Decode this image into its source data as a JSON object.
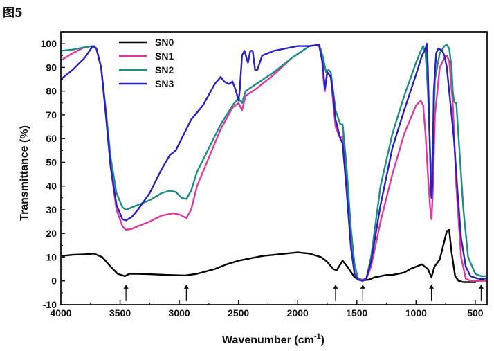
{
  "figure_label": "图5",
  "chart_data": {
    "type": "line",
    "title": "",
    "xlabel": "Wavenumber (cm",
    "xlabel_sup": "-1",
    "xlabel_close": ")",
    "ylabel": "Transmittance (%)",
    "xlim": [
      4000,
      400
    ],
    "ylim": [
      -10,
      105
    ],
    "x_ticks": [
      4000,
      3500,
      3000,
      2500,
      2000,
      1500,
      1000,
      500
    ],
    "y_ticks": [
      -10,
      0,
      10,
      20,
      30,
      40,
      50,
      60,
      70,
      80,
      90,
      100
    ],
    "grid": false,
    "legend_position": "top-left",
    "arrow_wavenumbers": [
      3450,
      2940,
      1680,
      1450,
      870,
      450
    ],
    "series": [
      {
        "name": "SN0",
        "color": "#000000",
        "points": [
          [
            4000,
            10.5
          ],
          [
            3900,
            11
          ],
          [
            3800,
            11.2
          ],
          [
            3720,
            11.5
          ],
          [
            3650,
            10
          ],
          [
            3580,
            6
          ],
          [
            3520,
            3
          ],
          [
            3460,
            2
          ],
          [
            3420,
            3
          ],
          [
            3350,
            3
          ],
          [
            3250,
            2.8
          ],
          [
            3100,
            2.5
          ],
          [
            2950,
            2.3
          ],
          [
            2850,
            3
          ],
          [
            2700,
            5
          ],
          [
            2600,
            7
          ],
          [
            2500,
            8.5
          ],
          [
            2400,
            9.5
          ],
          [
            2300,
            10.5
          ],
          [
            2200,
            11
          ],
          [
            2100,
            11.5
          ],
          [
            2000,
            12
          ],
          [
            1900,
            11.5
          ],
          [
            1800,
            10
          ],
          [
            1750,
            8
          ],
          [
            1700,
            5
          ],
          [
            1670,
            4.5
          ],
          [
            1620,
            8.5
          ],
          [
            1580,
            6
          ],
          [
            1520,
            1.5
          ],
          [
            1480,
            0.5
          ],
          [
            1450,
            0.3
          ],
          [
            1400,
            0.5
          ],
          [
            1350,
            1.5
          ],
          [
            1300,
            2
          ],
          [
            1250,
            2.5
          ],
          [
            1200,
            2.5
          ],
          [
            1100,
            3.5
          ],
          [
            1050,
            5
          ],
          [
            1000,
            6
          ],
          [
            950,
            7
          ],
          [
            900,
            5
          ],
          [
            870,
            1.5
          ],
          [
            845,
            6
          ],
          [
            800,
            9
          ],
          [
            770,
            15
          ],
          [
            740,
            21
          ],
          [
            720,
            21.5
          ],
          [
            700,
            12
          ],
          [
            670,
            2
          ],
          [
            640,
            0
          ],
          [
            600,
            -0.5
          ],
          [
            500,
            -0.5
          ],
          [
            450,
            0.5
          ],
          [
            420,
            1
          ]
        ]
      },
      {
        "name": "SN1",
        "color": "#e0399e",
        "points": [
          [
            4000,
            93
          ],
          [
            3900,
            96
          ],
          [
            3800,
            98.5
          ],
          [
            3730,
            99
          ],
          [
            3700,
            98
          ],
          [
            3660,
            90
          ],
          [
            3620,
            70
          ],
          [
            3580,
            48
          ],
          [
            3530,
            30
          ],
          [
            3480,
            23
          ],
          [
            3450,
            21.5
          ],
          [
            3400,
            22
          ],
          [
            3350,
            23
          ],
          [
            3250,
            25
          ],
          [
            3150,
            27.5
          ],
          [
            3050,
            28.5
          ],
          [
            3000,
            28
          ],
          [
            2940,
            26.5
          ],
          [
            2900,
            30
          ],
          [
            2850,
            40
          ],
          [
            2750,
            52
          ],
          [
            2650,
            64
          ],
          [
            2550,
            73
          ],
          [
            2500,
            75
          ],
          [
            2470,
            72
          ],
          [
            2440,
            78
          ],
          [
            2350,
            81
          ],
          [
            2200,
            87
          ],
          [
            2050,
            94
          ],
          [
            1900,
            99
          ],
          [
            1820,
            99.5
          ],
          [
            1800,
            97
          ],
          [
            1780,
            84
          ],
          [
            1770,
            80
          ],
          [
            1750,
            88
          ],
          [
            1720,
            86
          ],
          [
            1700,
            75
          ],
          [
            1680,
            65
          ],
          [
            1640,
            60
          ],
          [
            1620,
            61
          ],
          [
            1590,
            45
          ],
          [
            1550,
            20
          ],
          [
            1520,
            6
          ],
          [
            1490,
            1
          ],
          [
            1450,
            0.5
          ],
          [
            1420,
            1
          ],
          [
            1380,
            6
          ],
          [
            1300,
            25
          ],
          [
            1200,
            45
          ],
          [
            1100,
            62
          ],
          [
            1000,
            74
          ],
          [
            960,
            76
          ],
          [
            940,
            74
          ],
          [
            920,
            62
          ],
          [
            900,
            45
          ],
          [
            880,
            30
          ],
          [
            870,
            26
          ],
          [
            860,
            35
          ],
          [
            840,
            70
          ],
          [
            800,
            90
          ],
          [
            760,
            94
          ],
          [
            740,
            95
          ],
          [
            720,
            93
          ],
          [
            690,
            75
          ],
          [
            660,
            40
          ],
          [
            620,
            10
          ],
          [
            580,
            1
          ],
          [
            540,
            0
          ],
          [
            450,
            0
          ],
          [
            400,
            0
          ]
        ]
      },
      {
        "name": "SN2",
        "color": "#1e8c87",
        "points": [
          [
            4000,
            97
          ],
          [
            3900,
            97.5
          ],
          [
            3800,
            98.5
          ],
          [
            3720,
            99
          ],
          [
            3700,
            98
          ],
          [
            3660,
            90
          ],
          [
            3620,
            72
          ],
          [
            3580,
            52
          ],
          [
            3530,
            37
          ],
          [
            3480,
            31
          ],
          [
            3450,
            30
          ],
          [
            3400,
            31
          ],
          [
            3350,
            32
          ],
          [
            3250,
            34
          ],
          [
            3150,
            37
          ],
          [
            3080,
            38
          ],
          [
            3030,
            37.5
          ],
          [
            2980,
            35
          ],
          [
            2940,
            34.5
          ],
          [
            2900,
            38
          ],
          [
            2850,
            46
          ],
          [
            2750,
            56
          ],
          [
            2650,
            66
          ],
          [
            2550,
            74
          ],
          [
            2500,
            77
          ],
          [
            2470,
            75
          ],
          [
            2440,
            80
          ],
          [
            2350,
            83
          ],
          [
            2200,
            88
          ],
          [
            2050,
            94
          ],
          [
            1900,
            99
          ],
          [
            1820,
            99.5
          ],
          [
            1790,
            95
          ],
          [
            1760,
            88
          ],
          [
            1740,
            89
          ],
          [
            1720,
            88
          ],
          [
            1700,
            80
          ],
          [
            1680,
            72
          ],
          [
            1640,
            66
          ],
          [
            1620,
            66
          ],
          [
            1590,
            50
          ],
          [
            1550,
            22
          ],
          [
            1520,
            7
          ],
          [
            1490,
            1
          ],
          [
            1450,
            0
          ],
          [
            1420,
            1
          ],
          [
            1380,
            10
          ],
          [
            1300,
            40
          ],
          [
            1200,
            62
          ],
          [
            1100,
            78
          ],
          [
            1000,
            92
          ],
          [
            960,
            97
          ],
          [
            940,
            99
          ],
          [
            920,
            96
          ],
          [
            900,
            80
          ],
          [
            880,
            52
          ],
          [
            870,
            40
          ],
          [
            860,
            55
          ],
          [
            840,
            85
          ],
          [
            800,
            96
          ],
          [
            760,
            99
          ],
          [
            740,
            99.5
          ],
          [
            720,
            98
          ],
          [
            700,
            90
          ],
          [
            690,
            80
          ],
          [
            680,
            76
          ],
          [
            670,
            75
          ],
          [
            660,
            75
          ],
          [
            640,
            60
          ],
          [
            600,
            30
          ],
          [
            560,
            10
          ],
          [
            500,
            3
          ],
          [
            450,
            2
          ],
          [
            400,
            2
          ]
        ]
      },
      {
        "name": "SN3",
        "color": "#2a1fc0",
        "points": [
          [
            4000,
            85
          ],
          [
            3900,
            89
          ],
          [
            3800,
            94
          ],
          [
            3730,
            99
          ],
          [
            3700,
            98
          ],
          [
            3660,
            90
          ],
          [
            3620,
            70
          ],
          [
            3580,
            48
          ],
          [
            3530,
            32
          ],
          [
            3480,
            26
          ],
          [
            3450,
            25.5
          ],
          [
            3400,
            27
          ],
          [
            3350,
            30
          ],
          [
            3250,
            37
          ],
          [
            3150,
            47
          ],
          [
            3080,
            53
          ],
          [
            3030,
            55
          ],
          [
            2980,
            60
          ],
          [
            2900,
            68
          ],
          [
            2800,
            74
          ],
          [
            2700,
            83
          ],
          [
            2650,
            86
          ],
          [
            2620,
            84
          ],
          [
            2580,
            83
          ],
          [
            2550,
            84
          ],
          [
            2520,
            80
          ],
          [
            2500,
            76
          ],
          [
            2490,
            80
          ],
          [
            2470,
            95
          ],
          [
            2450,
            97
          ],
          [
            2420,
            92
          ],
          [
            2400,
            97
          ],
          [
            2380,
            97
          ],
          [
            2360,
            89
          ],
          [
            2340,
            89
          ],
          [
            2300,
            95
          ],
          [
            2200,
            97
          ],
          [
            2100,
            98
          ],
          [
            2000,
            99
          ],
          [
            1900,
            99
          ],
          [
            1820,
            99.5
          ],
          [
            1790,
            92
          ],
          [
            1770,
            81
          ],
          [
            1750,
            88
          ],
          [
            1720,
            86
          ],
          [
            1700,
            78
          ],
          [
            1680,
            68
          ],
          [
            1640,
            60
          ],
          [
            1620,
            58
          ],
          [
            1590,
            40
          ],
          [
            1550,
            14
          ],
          [
            1520,
            3
          ],
          [
            1490,
            0.5
          ],
          [
            1450,
            0
          ],
          [
            1420,
            1
          ],
          [
            1380,
            8
          ],
          [
            1300,
            32
          ],
          [
            1200,
            56
          ],
          [
            1100,
            72
          ],
          [
            1000,
            87
          ],
          [
            950,
            95
          ],
          [
            920,
            98
          ],
          [
            910,
            100
          ],
          [
            900,
            90
          ],
          [
            885,
            60
          ],
          [
            875,
            40
          ],
          [
            870,
            35
          ],
          [
            862,
            40
          ],
          [
            850,
            80
          ],
          [
            830,
            96
          ],
          [
            810,
            98
          ],
          [
            780,
            97
          ],
          [
            760,
            95
          ],
          [
            740,
            90
          ],
          [
            720,
            80
          ],
          [
            700,
            70
          ],
          [
            680,
            60
          ],
          [
            650,
            38
          ],
          [
            620,
            18
          ],
          [
            580,
            6
          ],
          [
            540,
            2
          ],
          [
            480,
            1
          ],
          [
            400,
            1
          ]
        ]
      }
    ]
  }
}
